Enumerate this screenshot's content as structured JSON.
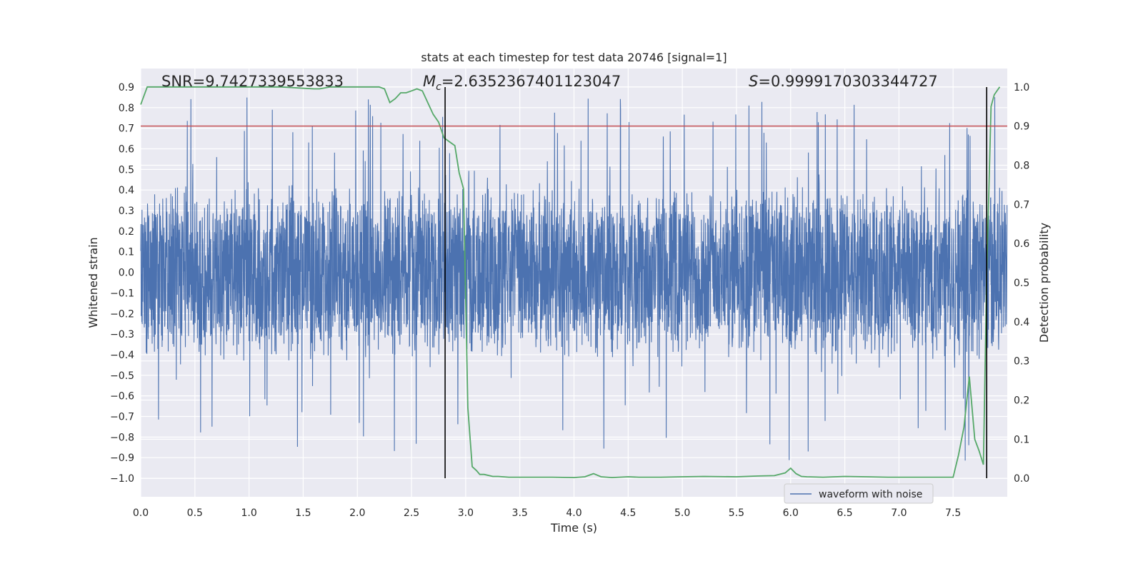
{
  "chart_data": {
    "type": "line",
    "title": "stats at each timestep for test data 20746 [signal=1]",
    "xlabel": "Time (s)",
    "ylabel_left": "Whitened strain",
    "ylabel_right": "Detection probability",
    "xlim": [
      0,
      8.0
    ],
    "ylim_left": [
      -1.09,
      0.99
    ],
    "ylim_right": [
      -0.047,
      1.047
    ],
    "x_ticks": [
      "0.0",
      "0.5",
      "1.0",
      "1.5",
      "2.0",
      "2.5",
      "3.0",
      "3.5",
      "4.0",
      "4.5",
      "5.0",
      "5.5",
      "6.0",
      "6.5",
      "7.0",
      "7.5"
    ],
    "y_left_ticks": [
      "0.9",
      "0.8",
      "0.7",
      "0.6",
      "0.5",
      "0.4",
      "0.3",
      "0.2",
      "0.1",
      "0.0",
      "−0.1",
      "−0.2",
      "−0.3",
      "−0.4",
      "−0.5",
      "−0.6",
      "−0.7",
      "−0.8",
      "−0.9",
      "−1.0"
    ],
    "y_right_ticks": [
      "1.0",
      "0.9",
      "0.8",
      "0.7",
      "0.6",
      "0.5",
      "0.4",
      "0.3",
      "0.2",
      "0.1",
      "0.0"
    ],
    "grid": true,
    "background": "#eaeaf2",
    "annotations": {
      "snr": "SNR=9.7427339553833",
      "mc_symbol": "M",
      "mc_sub": "c",
      "mc_value": "=2.6352367401123047",
      "s_symbol": "S",
      "s_value": "=0.9999170303344727"
    },
    "legend": {
      "label": "waveform with noise",
      "position": "lower right"
    },
    "threshold": {
      "value": 0.9,
      "axis": "right",
      "color": "#c44e52"
    },
    "vlines": [
      2.81,
      7.81
    ],
    "strain": {
      "name": "waveform with noise",
      "color": "#4c72b0",
      "sample_rate_hz": 512,
      "band": [
        -0.45,
        0.45
      ],
      "range": [
        -1.0,
        0.9
      ]
    },
    "probability": {
      "color": "#55a868",
      "x": [
        0.0,
        0.06,
        0.15,
        0.3,
        0.5,
        0.8,
        1.0,
        1.3,
        1.6,
        1.65,
        1.75,
        1.9,
        2.05,
        2.2,
        2.25,
        2.3,
        2.35,
        2.4,
        2.45,
        2.5,
        2.55,
        2.6,
        2.65,
        2.7,
        2.75,
        2.8,
        2.85,
        2.9,
        2.94,
        2.98,
        3.02,
        3.06,
        3.1,
        3.13,
        3.17,
        3.25,
        3.3,
        3.4,
        3.6,
        3.8,
        4.0,
        4.1,
        4.18,
        4.25,
        4.35,
        4.5,
        4.6,
        4.8,
        5.0,
        5.2,
        5.5,
        5.7,
        5.85,
        5.95,
        6.0,
        6.05,
        6.1,
        6.15,
        6.3,
        6.5,
        6.7,
        6.9,
        7.0,
        7.2,
        7.5,
        7.55,
        7.6,
        7.65,
        7.7,
        7.74,
        7.78,
        7.81,
        7.85,
        7.88,
        7.93
      ],
      "y": [
        0.955,
        1.0,
        1.0,
        1.0,
        1.0,
        1.0,
        1.0,
        1.0,
        0.995,
        0.995,
        1.0,
        1.0,
        1.0,
        1.0,
        0.995,
        0.96,
        0.97,
        0.985,
        0.985,
        0.99,
        0.995,
        0.99,
        0.96,
        0.93,
        0.91,
        0.87,
        0.86,
        0.85,
        0.78,
        0.74,
        0.18,
        0.03,
        0.02,
        0.01,
        0.01,
        0.005,
        0.005,
        0.003,
        0.003,
        0.003,
        0.002,
        0.004,
        0.012,
        0.004,
        0.002,
        0.004,
        0.003,
        0.003,
        0.004,
        0.005,
        0.004,
        0.006,
        0.007,
        0.014,
        0.026,
        0.012,
        0.005,
        0.004,
        0.003,
        0.005,
        0.004,
        0.003,
        0.003,
        0.003,
        0.003,
        0.06,
        0.13,
        0.26,
        0.1,
        0.07,
        0.035,
        0.52,
        0.95,
        0.98,
        1.0
      ]
    }
  }
}
